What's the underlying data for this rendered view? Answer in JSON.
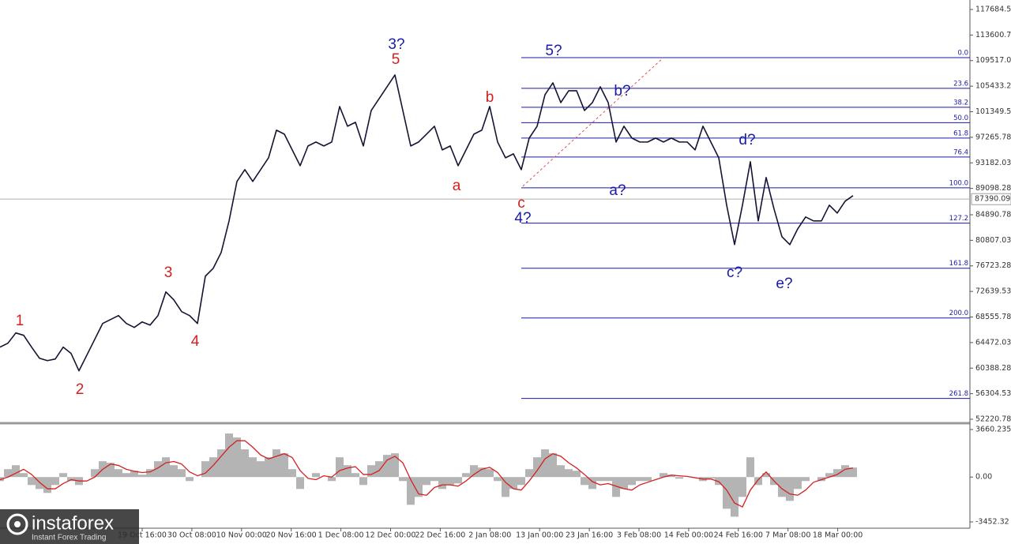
{
  "chart_data": [
    {
      "type": "line",
      "series": [
        {
          "color": "#141433",
          "values": [
            63739,
            64369,
            66008,
            65630,
            63739,
            61966,
            61588,
            61849,
            63739,
            62731,
            59958,
            62479,
            65000,
            67521,
            68151,
            68781,
            67521,
            66890,
            67773,
            67269,
            68781,
            72562,
            71302,
            69411,
            68781,
            67521,
            75083,
            76343,
            78864,
            83906,
            90208,
            92098,
            90208,
            92098,
            93989,
            98400,
            97770,
            95249,
            92729,
            95880,
            96510,
            95880,
            96510,
            102182,
            99031,
            99661,
            95880,
            101551,
            103442,
            105333,
            107223,
            101551,
            95880,
            96510,
            97770,
            99031,
            95249,
            95880,
            92729,
            95249,
            97770,
            98400,
            102182,
            96510,
            93989,
            94619,
            92098,
            97140,
            99031,
            104072,
            105963,
            102812,
            104702,
            104702,
            101551,
            102812,
            105333,
            102812,
            96510,
            99031,
            97140,
            96510,
            96510,
            97140,
            96510,
            97140,
            96510,
            96510,
            95249,
            99031,
            96510,
            93989,
            86427,
            80125,
            86427,
            93359,
            83906,
            90838,
            85796,
            81385,
            80125,
            82645,
            84536,
            83906,
            83906,
            86427,
            85166,
            87057,
            87939
          ]
        }
      ],
      "ylim": [
        51717,
        119197
      ],
      "yticks": [
        117684.53,
        113600.78,
        109517.03,
        105433.28,
        101349.53,
        97265.78,
        93182.03,
        89098.28,
        84890.78,
        80807.03,
        76723.28,
        72639.53,
        68555.78,
        64472.03,
        60388.28,
        56304.53,
        52220.78
      ],
      "x_labels": [
        "19 Oct 16:00",
        "30 Oct 08:00",
        "10 Nov 00:00",
        "20 Nov 16:00",
        "1 Dec 08:00",
        "12 Dec 00:00",
        "22 Dec 16:00",
        "2 Jan 08:00",
        "13 Jan 00:00",
        "23 Jan 16:00",
        "3 Feb 08:00",
        "14 Feb 00:00",
        "24 Feb 16:00",
        "7 Mar 08:00",
        "18 Mar 00:00"
      ],
      "current_price": 87390.09,
      "fibonacci": {
        "high": 109996,
        "low": 89200,
        "color": "#1a1aa8",
        "anchor_color": "#e05050",
        "levels": [
          {
            "value": 0,
            "label": "0.0"
          },
          23.6,
          38.2,
          {
            "value": 50,
            "label": "50.0"
          },
          61.8,
          76.4,
          {
            "value": 100,
            "label": "100.0"
          },
          127.2,
          161.8,
          {
            "value": 200,
            "label": "200.0"
          },
          261.8
        ]
      },
      "annotations": [
        {
          "text": "1",
          "color": "#d42020"
        },
        {
          "text": "2",
          "color": "#d42020"
        },
        {
          "text": "3",
          "color": "#d42020"
        },
        {
          "text": "4",
          "color": "#d42020"
        },
        {
          "text": "3?",
          "color": "#1a1aa8"
        },
        {
          "text": "5",
          "color": "#d42020"
        },
        {
          "text": "a",
          "color": "#d42020"
        },
        {
          "text": "b",
          "color": "#d42020"
        },
        {
          "text": "c",
          "color": "#d42020"
        },
        {
          "text": "4?",
          "color": "#1a1aa8"
        },
        {
          "text": "5?",
          "color": "#1a1aa8"
        },
        {
          "text": "b?",
          "color": "#1a1aa8"
        },
        {
          "text": "a?",
          "color": "#1a1aa8"
        },
        {
          "text": "d?",
          "color": "#1a1aa8"
        },
        {
          "text": "c?",
          "color": "#1a1aa8"
        },
        {
          "text": "e?",
          "color": "#1a1aa8"
        }
      ]
    },
    {
      "type": "macd",
      "series": [
        {
          "color": "#b4b4b4",
          "values": [
            -305,
            610,
            915,
            305,
            -610,
            -915,
            -1220,
            -610,
            305,
            -305,
            -610,
            0,
            610,
            1220,
            1098,
            610,
            305,
            488,
            183,
            610,
            1220,
            1525,
            915,
            610,
            -305,
            0,
            1220,
            1525,
            2135,
            3355,
            3050,
            2135,
            1525,
            1220,
            1525,
            2135,
            1830,
            610,
            -915,
            0,
            305,
            0,
            -305,
            1525,
            915,
            305,
            -610,
            915,
            1220,
            1708,
            1830,
            -305,
            -2135,
            -1525,
            -610,
            -305,
            -915,
            -610,
            -488,
            305,
            915,
            732,
            610,
            -305,
            -1525,
            -915,
            -610,
            610,
            1525,
            2135,
            1830,
            915,
            610,
            488,
            -610,
            -915,
            -305,
            -305,
            -1525,
            -915,
            -610,
            -305,
            -305,
            0,
            305,
            183,
            -122,
            0,
            0,
            -305,
            -122,
            -610,
            -2440,
            -3050,
            -1525,
            1525,
            -610,
            305,
            -610,
            -1525,
            -1830,
            -915,
            -305,
            0,
            -305,
            305,
            610,
            915,
            732
          ]
        },
        {
          "color": "#d42020",
          "values": [
            -200,
            0,
            300,
            600,
            200,
            -400,
            -900,
            -900,
            -500,
            -200,
            -300,
            -300,
            0,
            600,
            1000,
            900,
            600,
            450,
            350,
            400,
            700,
            1100,
            1200,
            1000,
            400,
            100,
            300,
            900,
            1600,
            2300,
            2800,
            2800,
            2300,
            1700,
            1400,
            1600,
            1800,
            1500,
            500,
            -100,
            -200,
            100,
            0,
            500,
            700,
            800,
            200,
            200,
            500,
            1300,
            1600,
            1100,
            -200,
            -1300,
            -1400,
            -800,
            -600,
            -600,
            -700,
            -300,
            200,
            600,
            750,
            350,
            -400,
            -900,
            -1000,
            -300,
            500,
            1400,
            1800,
            1600,
            1100,
            700,
            200,
            -350,
            -600,
            -500,
            -700,
            -900,
            -1000,
            -600,
            -400,
            -200,
            0,
            150,
            100,
            50,
            -50,
            -150,
            -150,
            -350,
            -1000,
            -2000,
            -2300,
            -1000,
            -200,
            400,
            -300,
            -900,
            -1300,
            -1400,
            -1000,
            -400,
            -200,
            0,
            200,
            600,
            700
          ]
        }
      ],
      "ylim": [
        -3876,
        4087
      ],
      "yticks": [
        3660.235,
        {
          "value": 0,
          "label": "0.00"
        },
        -3452.32
      ]
    }
  ],
  "watermark": {
    "brand": "instaforex",
    "tagline": "Instant Forex Trading"
  }
}
